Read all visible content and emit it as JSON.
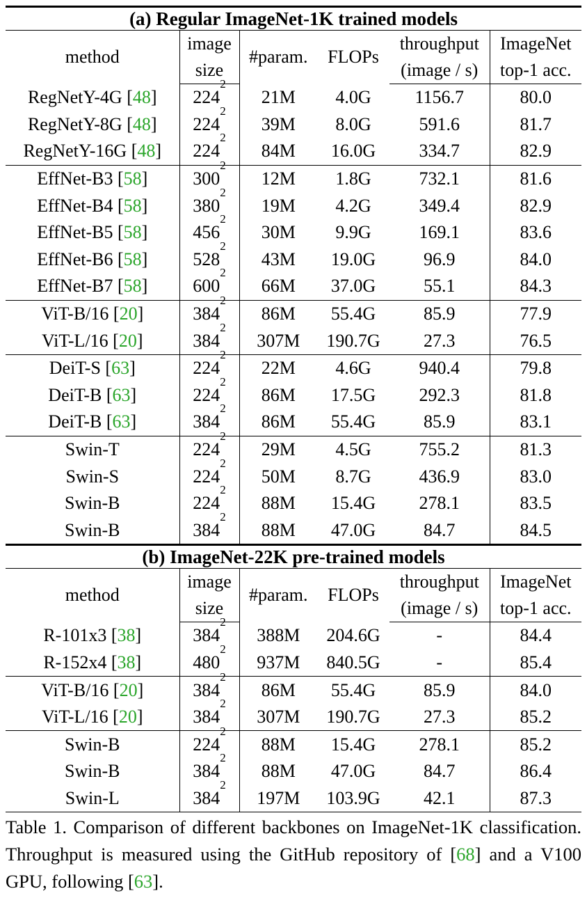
{
  "table": {
    "headers": {
      "method": "method",
      "image_size": [
        "image",
        "size"
      ],
      "params": "#param.",
      "flops": "FLOPs",
      "throughput": [
        "throughput",
        "(image / s)"
      ],
      "accuracy": [
        "ImageNet",
        "top-1 acc."
      ]
    },
    "sections": [
      {
        "title": "(a) Regular ImageNet-1K trained models",
        "groups": [
          [
            {
              "method": "RegNetY-4G",
              "cite": "48",
              "res": "224",
              "exp": "2",
              "params": "21M",
              "flops": "4.0G",
              "throughput": "1156.7",
              "acc": "80.0"
            },
            {
              "method": "RegNetY-8G",
              "cite": "48",
              "res": "224",
              "exp": "2",
              "params": "39M",
              "flops": "8.0G",
              "throughput": "591.6",
              "acc": "81.7"
            },
            {
              "method": "RegNetY-16G",
              "cite": "48",
              "res": "224",
              "exp": "2",
              "params": "84M",
              "flops": "16.0G",
              "throughput": "334.7",
              "acc": "82.9"
            }
          ],
          [
            {
              "method": "EffNet-B3",
              "cite": "58",
              "res": "300",
              "exp": "2",
              "params": "12M",
              "flops": "1.8G",
              "throughput": "732.1",
              "acc": "81.6"
            },
            {
              "method": "EffNet-B4",
              "cite": "58",
              "res": "380",
              "exp": "2",
              "params": "19M",
              "flops": "4.2G",
              "throughput": "349.4",
              "acc": "82.9"
            },
            {
              "method": "EffNet-B5",
              "cite": "58",
              "res": "456",
              "exp": "2",
              "params": "30M",
              "flops": "9.9G",
              "throughput": "169.1",
              "acc": "83.6"
            },
            {
              "method": "EffNet-B6",
              "cite": "58",
              "res": "528",
              "exp": "2",
              "params": "43M",
              "flops": "19.0G",
              "throughput": "96.9",
              "acc": "84.0"
            },
            {
              "method": "EffNet-B7",
              "cite": "58",
              "res": "600",
              "exp": "2",
              "params": "66M",
              "flops": "37.0G",
              "throughput": "55.1",
              "acc": "84.3"
            }
          ],
          [
            {
              "method": "ViT-B/16",
              "cite": "20",
              "res": "384",
              "exp": "2",
              "params": "86M",
              "flops": "55.4G",
              "throughput": "85.9",
              "acc": "77.9"
            },
            {
              "method": "ViT-L/16",
              "cite": "20",
              "res": "384",
              "exp": "2",
              "params": "307M",
              "flops": "190.7G",
              "throughput": "27.3",
              "acc": "76.5"
            }
          ],
          [
            {
              "method": "DeiT-S",
              "cite": "63",
              "res": "224",
              "exp": "2",
              "params": "22M",
              "flops": "4.6G",
              "throughput": "940.4",
              "acc": "79.8"
            },
            {
              "method": "DeiT-B",
              "cite": "63",
              "res": "224",
              "exp": "2",
              "params": "86M",
              "flops": "17.5G",
              "throughput": "292.3",
              "acc": "81.8"
            },
            {
              "method": "DeiT-B",
              "cite": "63",
              "res": "384",
              "exp": "2",
              "params": "86M",
              "flops": "55.4G",
              "throughput": "85.9",
              "acc": "83.1"
            }
          ],
          [
            {
              "method": "Swin-T",
              "cite": "",
              "res": "224",
              "exp": "2",
              "params": "29M",
              "flops": "4.5G",
              "throughput": "755.2",
              "acc": "81.3"
            },
            {
              "method": "Swin-S",
              "cite": "",
              "res": "224",
              "exp": "2",
              "params": "50M",
              "flops": "8.7G",
              "throughput": "436.9",
              "acc": "83.0"
            },
            {
              "method": "Swin-B",
              "cite": "",
              "res": "224",
              "exp": "2",
              "params": "88M",
              "flops": "15.4G",
              "throughput": "278.1",
              "acc": "83.5"
            },
            {
              "method": "Swin-B",
              "cite": "",
              "res": "384",
              "exp": "2",
              "params": "88M",
              "flops": "47.0G",
              "throughput": "84.7",
              "acc": "84.5"
            }
          ]
        ]
      },
      {
        "title": "(b) ImageNet-22K pre-trained models",
        "groups": [
          [
            {
              "method": "R-101x3",
              "cite": "38",
              "res": "384",
              "exp": "2",
              "params": "388M",
              "flops": "204.6G",
              "throughput": "-",
              "acc": "84.4"
            },
            {
              "method": "R-152x4",
              "cite": "38",
              "res": "480",
              "exp": "2",
              "params": "937M",
              "flops": "840.5G",
              "throughput": "-",
              "acc": "85.4"
            }
          ],
          [
            {
              "method": "ViT-B/16",
              "cite": "20",
              "res": "384",
              "exp": "2",
              "params": "86M",
              "flops": "55.4G",
              "throughput": "85.9",
              "acc": "84.0"
            },
            {
              "method": "ViT-L/16",
              "cite": "20",
              "res": "384",
              "exp": "2",
              "params": "307M",
              "flops": "190.7G",
              "throughput": "27.3",
              "acc": "85.2"
            }
          ],
          [
            {
              "method": "Swin-B",
              "cite": "",
              "res": "224",
              "exp": "2",
              "params": "88M",
              "flops": "15.4G",
              "throughput": "278.1",
              "acc": "85.2"
            },
            {
              "method": "Swin-B",
              "cite": "",
              "res": "384",
              "exp": "2",
              "params": "88M",
              "flops": "47.0G",
              "throughput": "84.7",
              "acc": "86.4"
            },
            {
              "method": "Swin-L",
              "cite": "",
              "res": "384",
              "exp": "2",
              "params": "197M",
              "flops": "103.9G",
              "throughput": "42.1",
              "acc": "87.3"
            }
          ]
        ]
      }
    ]
  },
  "caption": {
    "prefix": "Table 1. Comparison of different backbones on ImageNet-1K classification. Throughput is measured using the GitHub repository of [",
    "cite1": "68",
    "middle": "] and a V100 GPU, following [",
    "cite2": "63",
    "suffix": "]."
  },
  "colors": {
    "citation": "#2aa52a",
    "text": "#000000"
  }
}
